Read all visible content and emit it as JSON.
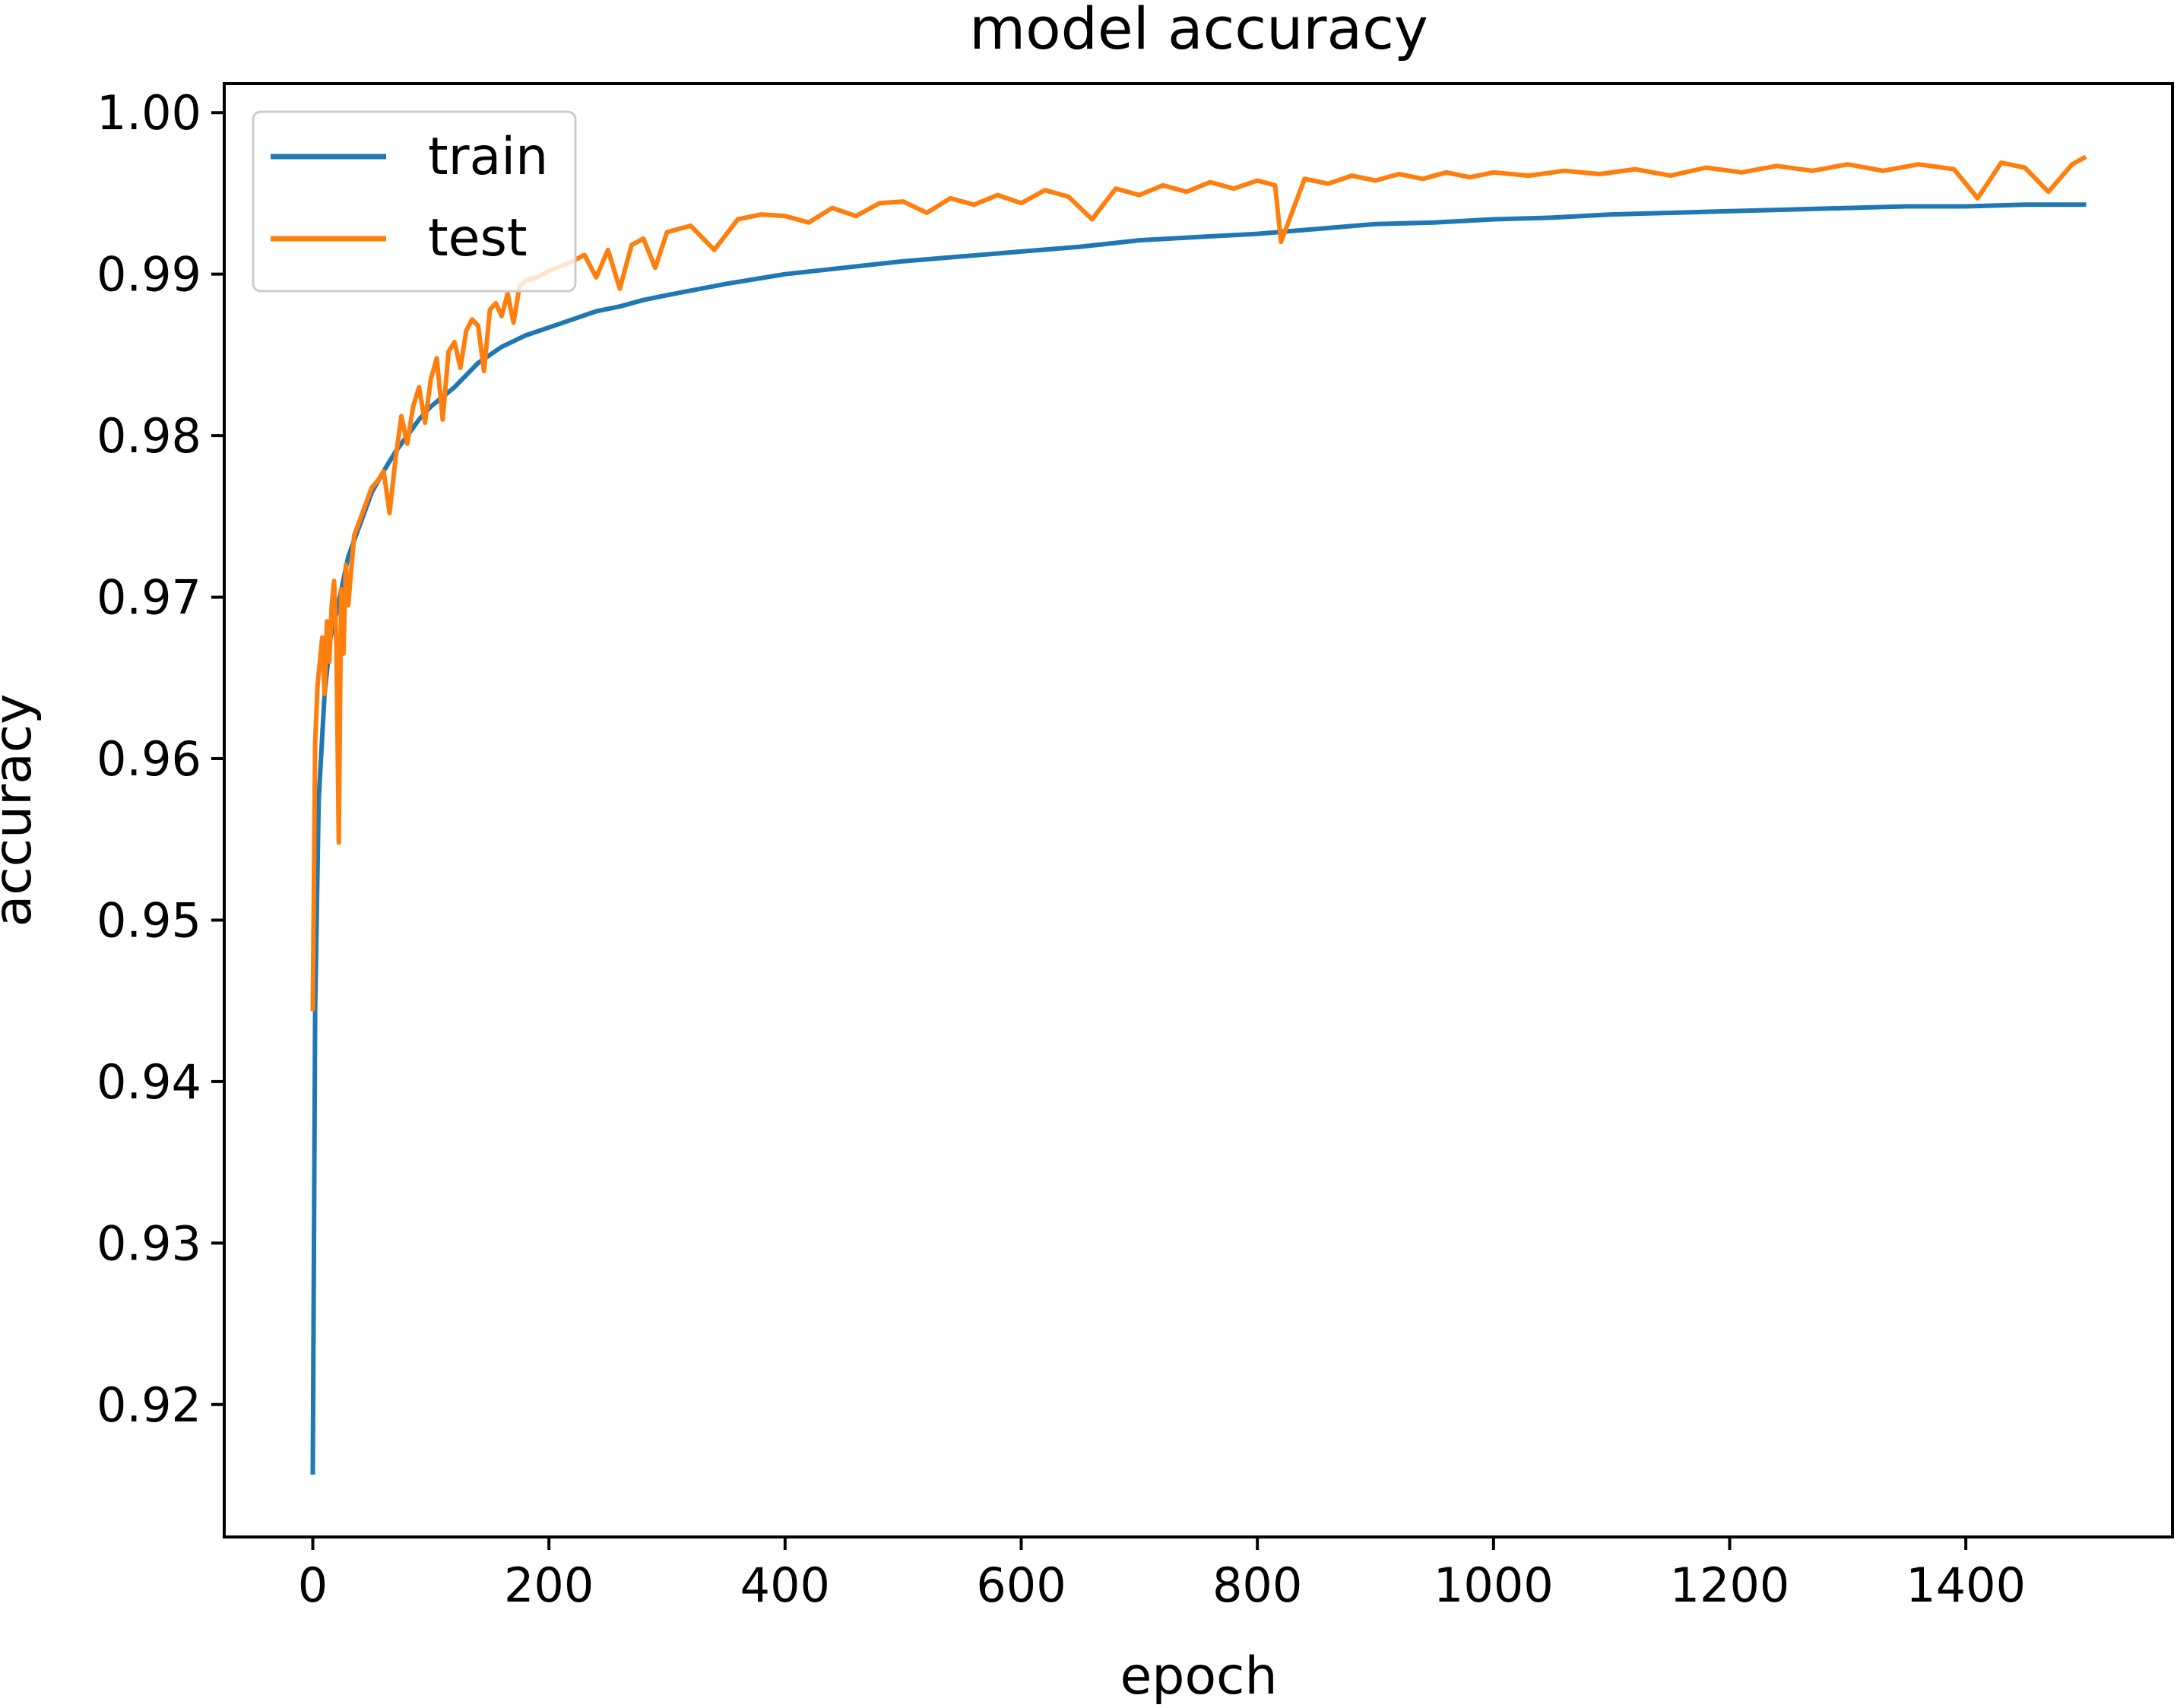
{
  "chart_data": {
    "type": "line",
    "title": "model accuracy",
    "xlabel": "epoch",
    "ylabel": "accuracy",
    "xlim": [
      -75,
      1575
    ],
    "ylim": [
      0.9118,
      1.0018
    ],
    "xticks": [
      0,
      200,
      400,
      600,
      800,
      1000,
      1200,
      1400
    ],
    "xtick_labels": [
      "0",
      "200",
      "400",
      "600",
      "800",
      "1000",
      "1200",
      "1400"
    ],
    "yticks": [
      0.92,
      0.93,
      0.94,
      0.95,
      0.96,
      0.97,
      0.98,
      0.99,
      1.0
    ],
    "ytick_labels": [
      "0.92",
      "0.93",
      "0.94",
      "0.95",
      "0.96",
      "0.97",
      "0.98",
      "0.99",
      "1.00"
    ],
    "grid": false,
    "legend": "upper left",
    "series": [
      {
        "name": "train",
        "color": "#1f77b4",
        "x": [
          0,
          2,
          5,
          10,
          15,
          20,
          30,
          40,
          50,
          60,
          70,
          80,
          90,
          100,
          120,
          140,
          160,
          180,
          200,
          220,
          240,
          260,
          280,
          300,
          350,
          400,
          450,
          500,
          550,
          600,
          650,
          700,
          750,
          800,
          850,
          900,
          950,
          1000,
          1050,
          1100,
          1150,
          1200,
          1250,
          1300,
          1350,
          1400,
          1450,
          1500
        ],
        "y": [
          0.9158,
          0.9445,
          0.9575,
          0.964,
          0.9675,
          0.969,
          0.9725,
          0.9745,
          0.9765,
          0.9778,
          0.979,
          0.98,
          0.981,
          0.9818,
          0.983,
          0.9845,
          0.9855,
          0.9862,
          0.9867,
          0.9872,
          0.9877,
          0.988,
          0.9884,
          0.9887,
          0.9894,
          0.99,
          0.9904,
          0.9908,
          0.9911,
          0.9914,
          0.9917,
          0.9921,
          0.9923,
          0.9925,
          0.9928,
          0.9931,
          0.9932,
          0.9934,
          0.9935,
          0.9937,
          0.9938,
          0.9939,
          0.994,
          0.9941,
          0.9942,
          0.9942,
          0.9943,
          0.9943
        ]
      },
      {
        "name": "test",
        "color": "#ff7f0e",
        "x": [
          0,
          2,
          4,
          6,
          8,
          10,
          12,
          14,
          16,
          18,
          20,
          22,
          24,
          26,
          28,
          30,
          35,
          40,
          45,
          50,
          55,
          60,
          65,
          70,
          75,
          80,
          85,
          90,
          95,
          100,
          105,
          110,
          115,
          120,
          125,
          130,
          135,
          140,
          145,
          150,
          155,
          160,
          165,
          170,
          175,
          180,
          190,
          200,
          210,
          220,
          230,
          240,
          250,
          260,
          270,
          280,
          290,
          300,
          320,
          340,
          360,
          380,
          400,
          420,
          440,
          460,
          480,
          500,
          520,
          540,
          560,
          580,
          600,
          620,
          640,
          660,
          680,
          700,
          720,
          740,
          760,
          780,
          800,
          815,
          820,
          840,
          860,
          880,
          900,
          920,
          940,
          960,
          980,
          1000,
          1030,
          1060,
          1090,
          1120,
          1150,
          1180,
          1210,
          1240,
          1270,
          1300,
          1330,
          1360,
          1390,
          1410,
          1430,
          1450,
          1470,
          1490,
          1500
        ],
        "y": [
          0.9445,
          0.961,
          0.9645,
          0.966,
          0.9675,
          0.964,
          0.9685,
          0.966,
          0.9695,
          0.971,
          0.967,
          0.9548,
          0.9705,
          0.9665,
          0.972,
          0.9695,
          0.9738,
          0.9748,
          0.9758,
          0.9768,
          0.9772,
          0.9778,
          0.9752,
          0.9785,
          0.9812,
          0.9795,
          0.9818,
          0.983,
          0.9808,
          0.9835,
          0.9848,
          0.981,
          0.9852,
          0.9858,
          0.9842,
          0.9865,
          0.9872,
          0.9868,
          0.984,
          0.9878,
          0.9882,
          0.9874,
          0.9888,
          0.987,
          0.9892,
          0.9896,
          0.9898,
          0.9902,
          0.9905,
          0.9908,
          0.9912,
          0.9898,
          0.9915,
          0.9891,
          0.9918,
          0.9922,
          0.9904,
          0.9926,
          0.993,
          0.9915,
          0.9934,
          0.9937,
          0.9936,
          0.9932,
          0.9941,
          0.9936,
          0.9944,
          0.9945,
          0.9938,
          0.9947,
          0.9943,
          0.9949,
          0.9944,
          0.9952,
          0.9948,
          0.9934,
          0.9953,
          0.9949,
          0.9955,
          0.9951,
          0.9957,
          0.9953,
          0.9958,
          0.9955,
          0.992,
          0.9959,
          0.9956,
          0.9961,
          0.9958,
          0.9962,
          0.9959,
          0.9963,
          0.996,
          0.9963,
          0.9961,
          0.9964,
          0.9962,
          0.9965,
          0.9961,
          0.9966,
          0.9963,
          0.9967,
          0.9964,
          0.9968,
          0.9964,
          0.9968,
          0.9965,
          0.9947,
          0.9969,
          0.9966,
          0.9951,
          0.9968,
          0.9972
        ]
      }
    ]
  }
}
